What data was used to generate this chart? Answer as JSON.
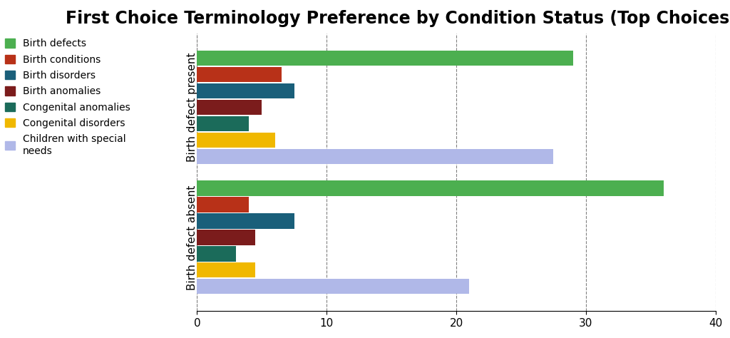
{
  "title": "First Choice Terminology Preference by Condition Status (Top Choices)",
  "categories": [
    "Birth defects",
    "Birth conditions",
    "Birth disorders",
    "Birth anomalies",
    "Congenital anomalies",
    "Congenital disorders",
    "Children with special\nneeds"
  ],
  "groups": [
    "Birth defect present",
    "Birth defect absent"
  ],
  "values": {
    "Birth defect present": [
      29,
      6.5,
      7.5,
      5,
      4,
      6,
      27.5
    ],
    "Birth defect absent": [
      36,
      4,
      7.5,
      4.5,
      3,
      4.5,
      21
    ]
  },
  "colors": [
    "#4caf50",
    "#b83118",
    "#1a5f7a",
    "#7b1c1c",
    "#1b6b5a",
    "#f0b800",
    "#b0b8e8"
  ],
  "xlim": [
    0,
    40
  ],
  "xticks": [
    0,
    10,
    20,
    30,
    40
  ],
  "background_color": "#ffffff",
  "title_fontsize": 17,
  "axis_fontsize": 11,
  "legend_fontsize": 10
}
